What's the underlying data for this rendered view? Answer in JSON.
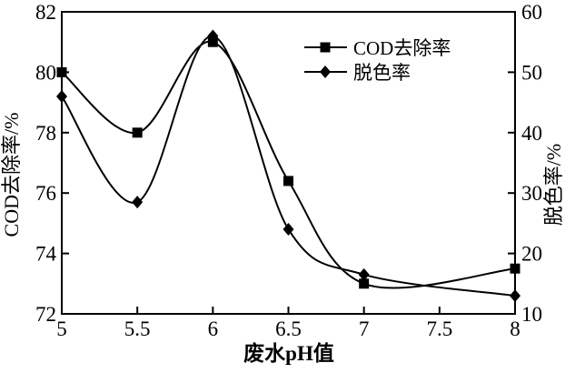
{
  "chart_data": {
    "type": "line",
    "title": "",
    "xlabel": "废水pH值",
    "ylabel_left": "COD去除率/%",
    "ylabel_right": "脱色率/%",
    "x": [
      5,
      5.5,
      6,
      6.5,
      7,
      8
    ],
    "series": [
      {
        "name": "COD去除率",
        "axis": "left",
        "marker": "square",
        "values": [
          80.0,
          78.0,
          81.0,
          76.4,
          73.0,
          73.5
        ]
      },
      {
        "name": "脱色率",
        "axis": "right",
        "marker": "diamond",
        "values": [
          46,
          28.5,
          56,
          24,
          16.5,
          13
        ]
      }
    ],
    "xlim": [
      5,
      8
    ],
    "x_ticks": [
      5,
      5.5,
      6,
      6.5,
      7,
      7.5,
      8
    ],
    "x_tick_labels": [
      "5",
      "5.5",
      "6",
      "6.5",
      "7",
      "7.5",
      "8"
    ],
    "left_ylim": [
      72,
      82
    ],
    "left_ticks": [
      72,
      74,
      76,
      78,
      80,
      82
    ],
    "right_ylim": [
      10,
      60
    ],
    "right_ticks": [
      10,
      20,
      30,
      40,
      50,
      60
    ],
    "grid": false,
    "legend_position": "upper-center-right",
    "line_color": "#000000",
    "background_color": "#ffffff",
    "curve_style": "smooth"
  }
}
